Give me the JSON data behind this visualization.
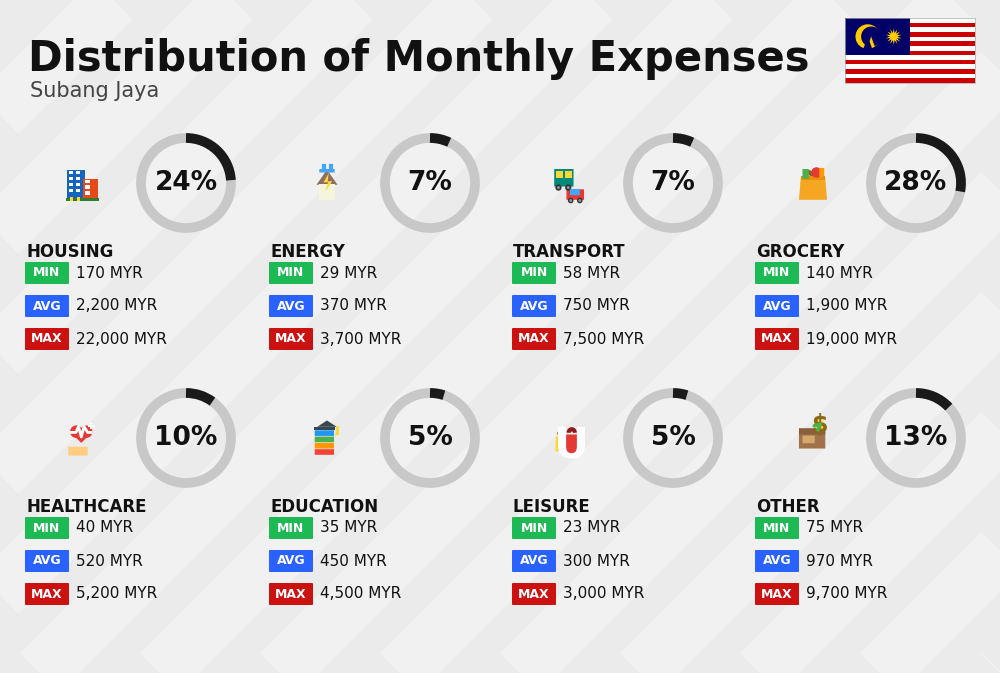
{
  "title": "Distribution of Monthly Expenses",
  "subtitle": "Subang Jaya",
  "background_color": "#ebebeb",
  "categories": [
    {
      "name": "HOUSING",
      "pct": 24,
      "min": "170 MYR",
      "avg": "2,200 MYR",
      "max": "22,000 MYR",
      "row": 0,
      "col": 0
    },
    {
      "name": "ENERGY",
      "pct": 7,
      "min": "29 MYR",
      "avg": "370 MYR",
      "max": "3,700 MYR",
      "row": 0,
      "col": 1
    },
    {
      "name": "TRANSPORT",
      "pct": 7,
      "min": "58 MYR",
      "avg": "750 MYR",
      "max": "7,500 MYR",
      "row": 0,
      "col": 2
    },
    {
      "name": "GROCERY",
      "pct": 28,
      "min": "140 MYR",
      "avg": "1,900 MYR",
      "max": "19,000 MYR",
      "row": 0,
      "col": 3
    },
    {
      "name": "HEALTHCARE",
      "pct": 10,
      "min": "40 MYR",
      "avg": "520 MYR",
      "max": "5,200 MYR",
      "row": 1,
      "col": 0
    },
    {
      "name": "EDUCATION",
      "pct": 5,
      "min": "35 MYR",
      "avg": "450 MYR",
      "max": "4,500 MYR",
      "row": 1,
      "col": 1
    },
    {
      "name": "LEISURE",
      "pct": 5,
      "min": "23 MYR",
      "avg": "300 MYR",
      "max": "3,000 MYR",
      "row": 1,
      "col": 2
    },
    {
      "name": "OTHER",
      "pct": 13,
      "min": "75 MYR",
      "avg": "970 MYR",
      "max": "9,700 MYR",
      "row": 1,
      "col": 3
    }
  ],
  "color_min": "#1db954",
  "color_avg": "#2962ff",
  "color_max": "#cc1111",
  "color_ring_filled": "#1a1a1a",
  "color_ring_empty": "#c8c8c8",
  "title_fontsize": 30,
  "subtitle_fontsize": 15,
  "cat_fontsize": 12,
  "pct_fontsize": 19,
  "val_fontsize": 11,
  "label_fontsize": 9
}
